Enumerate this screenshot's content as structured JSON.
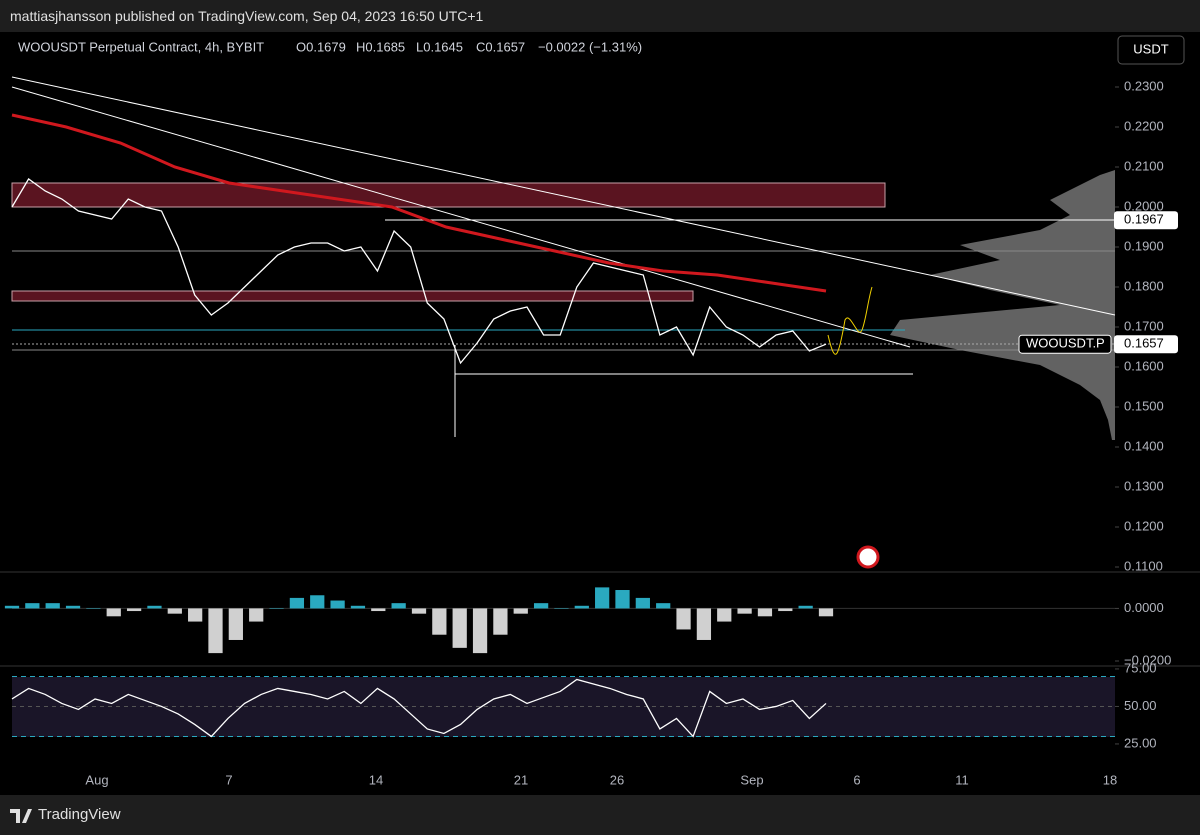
{
  "header": {
    "publisher": "mattiasjhansson published on TradingView.com, Sep 04, 2023 16:50 UTC+1"
  },
  "legend": {
    "symbol": "WOOUSDT Perpetual Contract, 4h, BYBIT",
    "open": "O0.1679",
    "high": "H0.1685",
    "low": "L0.1645",
    "close": "C0.1657",
    "change": "−0.0022 (−1.31%)"
  },
  "currency": "USDT",
  "footer": {
    "brand": "TradingView"
  },
  "chart_data": [
    {
      "type": "line",
      "color": "#ffffff",
      "values": [
        0.2,
        0.207,
        0.204,
        0.202,
        0.199,
        0.198,
        0.197,
        0.202,
        0.2,
        0.199,
        0.19,
        0.178,
        0.173,
        0.176,
        0.18,
        0.184,
        0.188,
        0.19,
        0.191,
        0.191,
        0.189,
        0.19,
        0.184,
        0.194,
        0.19,
        0.176,
        0.172,
        0.161,
        0.166,
        0.172,
        0.174,
        0.175,
        0.168,
        0.168,
        0.18,
        0.186,
        0.185,
        0.184,
        0.183,
        0.168,
        0.17,
        0.163,
        0.175,
        0.17,
        0.168,
        0.165,
        0.168,
        0.169,
        0.164,
        0.1657
      ],
      "ema": {
        "color": "#d0181e",
        "values": [
          0.223,
          0.22,
          0.216,
          0.21,
          0.206,
          0.204,
          0.202,
          0.2,
          0.195,
          0.192,
          0.189,
          0.186,
          0.184,
          0.183,
          0.181,
          0.179
        ]
      },
      "ylim": [
        0.10875,
        0.24375
      ],
      "yticks": [
        {
          "value": 0.23,
          "label": "0.2300"
        },
        {
          "value": 0.22,
          "label": "0.2200"
        },
        {
          "value": 0.21,
          "label": "0.2100"
        },
        {
          "value": 0.2,
          "label": "0.2000"
        },
        {
          "value": 0.19,
          "label": "0.1900"
        },
        {
          "value": 0.18,
          "label": "0.1800"
        },
        {
          "value": 0.17,
          "label": "0.1700"
        },
        {
          "value": 0.16,
          "label": "0.1600"
        },
        {
          "value": 0.15,
          "label": "0.1500"
        },
        {
          "value": 0.14,
          "label": "0.1400"
        },
        {
          "value": 0.13,
          "label": "0.1300"
        },
        {
          "value": 0.12,
          "label": "0.1200"
        },
        {
          "value": 0.11,
          "label": "0.1100"
        }
      ],
      "price_labels": [
        {
          "value": 0.1967,
          "label": "0.1967"
        },
        {
          "value": 0.1657,
          "label": "0.1657"
        }
      ],
      "symbol_tag": "WOOUSDT.P",
      "xtick_labels": [
        "Aug",
        "7",
        "14",
        "21",
        "26",
        "Sep",
        "6",
        "11",
        "18"
      ]
    },
    {
      "type": "bar",
      "colors": {
        "positive": "#2aa9c0",
        "negative": "#d0d0d0"
      },
      "values": [
        0.001,
        0.002,
        0.002,
        0.001,
        0.0,
        -0.003,
        -0.001,
        0.001,
        -0.002,
        -0.005,
        -0.017,
        -0.012,
        -0.005,
        0.0,
        0.004,
        0.005,
        0.003,
        0.001,
        -0.001,
        0.002,
        -0.002,
        -0.01,
        -0.015,
        -0.017,
        -0.01,
        -0.002,
        0.002,
        0.0,
        0.001,
        0.008,
        0.007,
        0.004,
        0.002,
        -0.008,
        -0.012,
        -0.005,
        -0.002,
        -0.003,
        -0.001,
        0.001,
        -0.003
      ],
      "ylim": [
        -0.0219,
        0.01385
      ],
      "yticks": [
        {
          "value": 0.0,
          "label": "0.0000"
        },
        {
          "value": -0.02,
          "label": "−0.0200"
        }
      ]
    },
    {
      "type": "line",
      "color": "#ffffff",
      "values": [
        55,
        62,
        58,
        52,
        48,
        55,
        52,
        58,
        54,
        50,
        45,
        38,
        30,
        42,
        52,
        58,
        62,
        60,
        58,
        55,
        60,
        52,
        62,
        55,
        45,
        35,
        32,
        38,
        48,
        55,
        58,
        52,
        56,
        60,
        68,
        65,
        62,
        58,
        55,
        35,
        42,
        30,
        60,
        52,
        55,
        48,
        50,
        54,
        42,
        52
      ],
      "bands": [
        70,
        30
      ],
      "ylim": [
        14.3,
        76.3
      ],
      "yticks": [
        {
          "value": 75,
          "label": "75.00"
        },
        {
          "value": 50,
          "label": "50.00"
        },
        {
          "value": 25,
          "label": "25.00"
        }
      ]
    }
  ]
}
